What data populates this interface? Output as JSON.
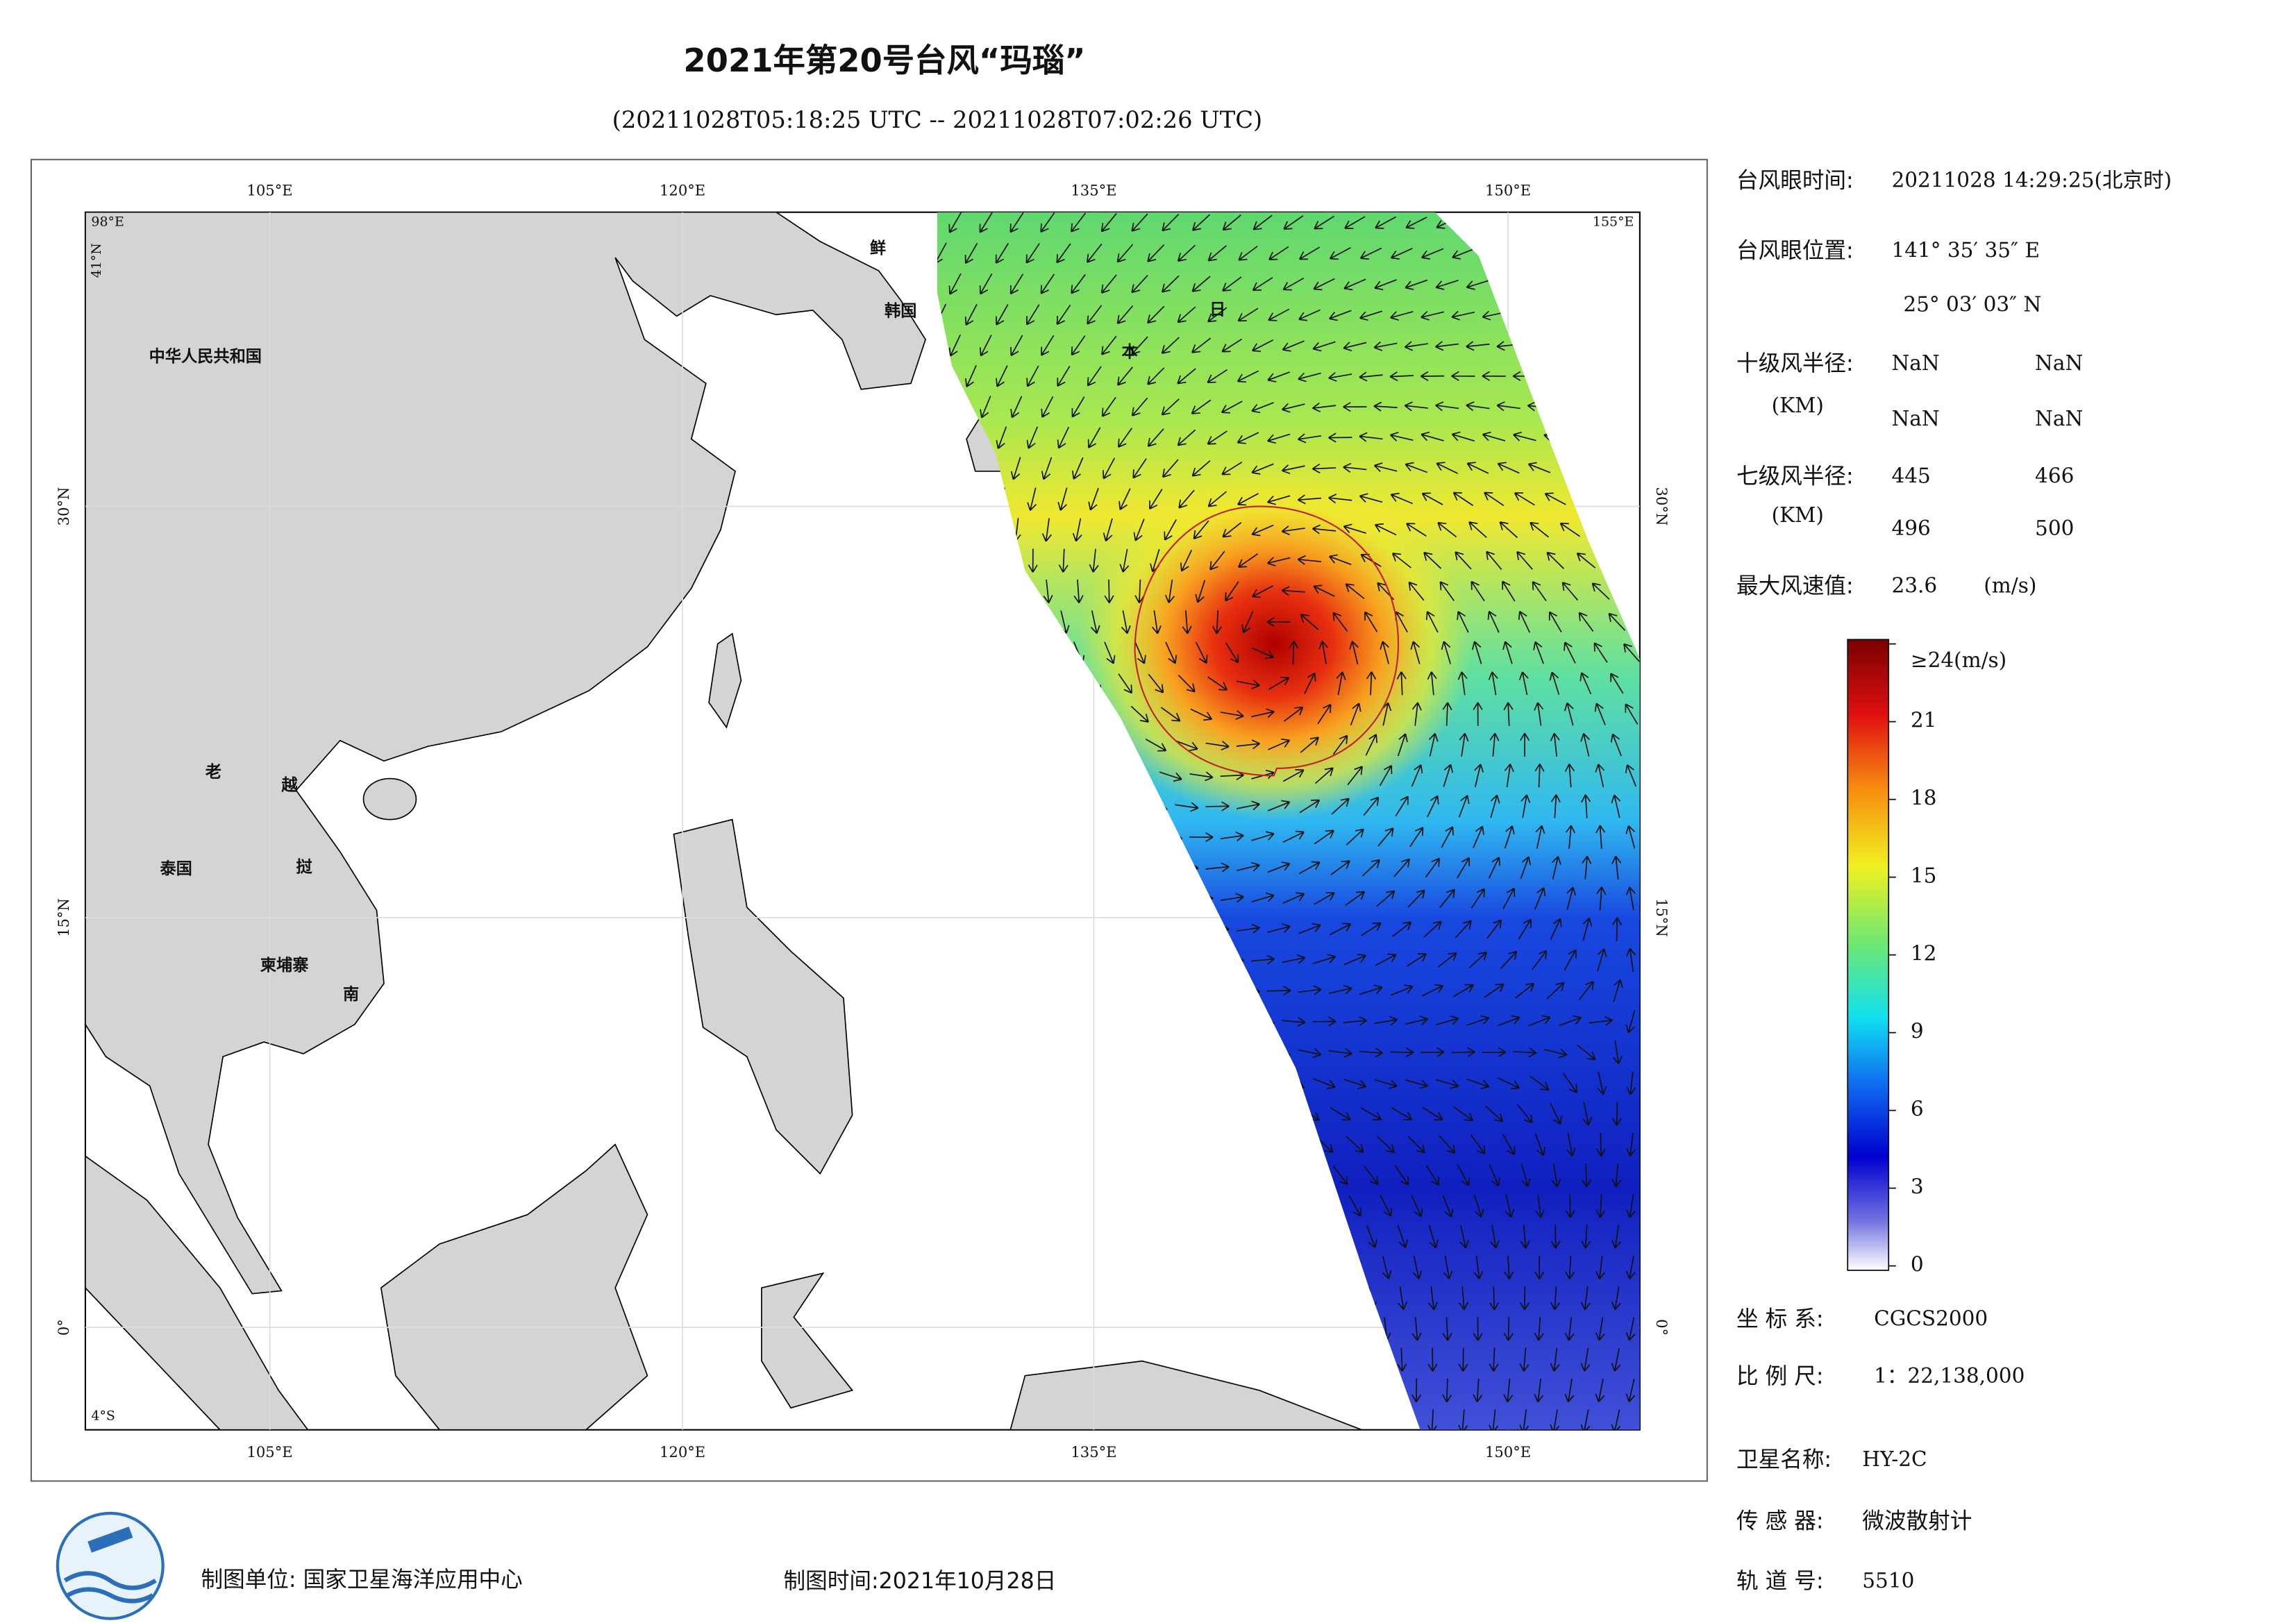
{
  "header": {
    "title": "2021年第20号台风“玛瑙”",
    "subtitle": "(20211028T05:18:25 UTC -- 20211028T07:02:26 UTC)"
  },
  "map": {
    "lon_labels": [
      "105°E",
      "120°E",
      "135°E",
      "150°E"
    ],
    "lat_labels": [
      "30°N",
      "15°N",
      "0°"
    ],
    "corner_labels": [
      "98°E",
      "155°E",
      "41°N",
      "4°S"
    ],
    "place_labels": [
      "中华人民共和国",
      "鲜",
      "韩国",
      "日",
      "本",
      "老",
      "越",
      "泰国",
      "挝",
      "柬埔寨",
      "南"
    ]
  },
  "info": {
    "eye_time": {
      "label": "台风眼时间:",
      "value": "20211028 14:29:25(北京时)"
    },
    "eye_position": {
      "label": "台风眼位置:",
      "lon": "141° 35′ 35″ E",
      "lat": "25° 03′ 03″ N"
    },
    "r10": {
      "label": "十级风半径:",
      "unit": "(KM)",
      "values": [
        "NaN",
        "NaN",
        "NaN",
        "NaN"
      ]
    },
    "r7": {
      "label": "七级风半径:",
      "unit": "(KM)",
      "values": [
        445,
        466,
        496,
        500
      ]
    },
    "max_wind": {
      "label": "最大风速值:",
      "value": 23.6,
      "unit": "(m/s)"
    }
  },
  "colorbar": {
    "lim": [
      0,
      24
    ],
    "ticks": [
      0,
      3,
      6,
      9,
      12,
      15,
      18,
      21,
      {
        "value": 24,
        "label": "≥24(m/s)"
      }
    ]
  },
  "meta": {
    "crs": {
      "label": "坐 标 系:",
      "value": "CGCS2000"
    },
    "scale": {
      "label": "比 例 尺:",
      "value": "1：22,138,000"
    },
    "satellite": {
      "label": "卫星名称:",
      "value": "HY-2C"
    },
    "sensor": {
      "label": "传 感 器:",
      "value": "微波散射计"
    },
    "orbit": {
      "label": "轨 道 号:",
      "value": 5510
    }
  },
  "footer": {
    "producer": "制图单位: 国家卫星海洋应用中心",
    "date": "制图时间:2021年10月28日"
  }
}
